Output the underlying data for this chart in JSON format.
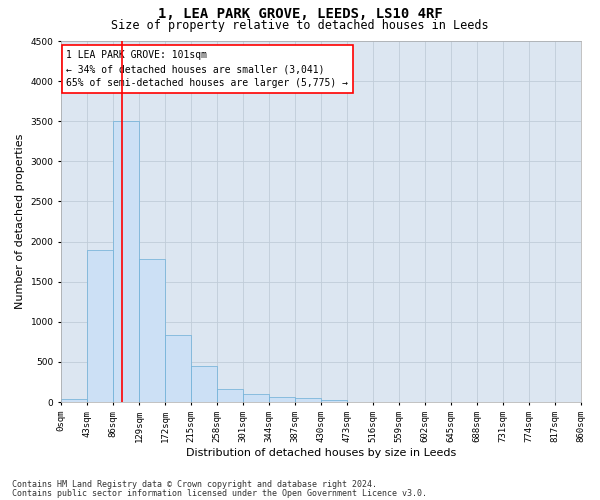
{
  "title": "1, LEA PARK GROVE, LEEDS, LS10 4RF",
  "subtitle": "Size of property relative to detached houses in Leeds",
  "xlabel": "Distribution of detached houses by size in Leeds",
  "ylabel": "Number of detached properties",
  "bar_color": "#cce0f5",
  "bar_edgecolor": "#6baed6",
  "grid_color": "#c0ccd8",
  "background_color": "#dce6f1",
  "tick_labels": [
    "0sqm",
    "43sqm",
    "86sqm",
    "129sqm",
    "172sqm",
    "215sqm",
    "258sqm",
    "301sqm",
    "344sqm",
    "387sqm",
    "430sqm",
    "473sqm",
    "516sqm",
    "559sqm",
    "602sqm",
    "645sqm",
    "688sqm",
    "731sqm",
    "774sqm",
    "817sqm",
    "860sqm"
  ],
  "bar_values": [
    40,
    1900,
    3500,
    1780,
    830,
    450,
    160,
    100,
    60,
    55,
    30,
    0,
    0,
    0,
    0,
    0,
    0,
    0,
    0,
    0
  ],
  "ylim": [
    0,
    4500
  ],
  "yticks": [
    0,
    500,
    1000,
    1500,
    2000,
    2500,
    3000,
    3500,
    4000,
    4500
  ],
  "property_line_x": 2.35,
  "annotation_line1": "1 LEA PARK GROVE: 101sqm",
  "annotation_line2": "← 34% of detached houses are smaller (3,041)",
  "annotation_line3": "65% of semi-detached houses are larger (5,775) →",
  "footer_line1": "Contains HM Land Registry data © Crown copyright and database right 2024.",
  "footer_line2": "Contains public sector information licensed under the Open Government Licence v3.0.",
  "title_fontsize": 10,
  "subtitle_fontsize": 8.5,
  "axis_label_fontsize": 8,
  "tick_fontsize": 6.5,
  "annotation_fontsize": 7,
  "footer_fontsize": 6
}
